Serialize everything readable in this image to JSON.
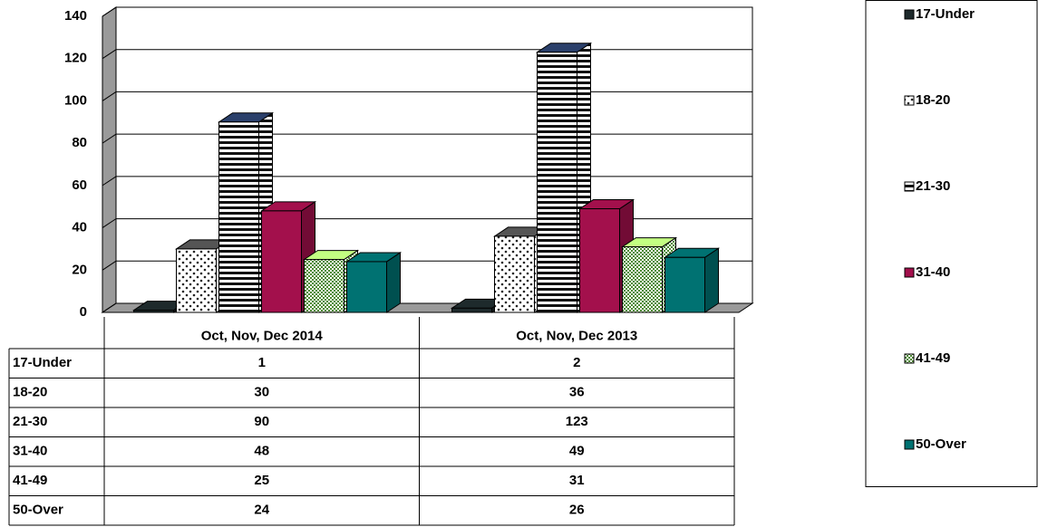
{
  "chart_data": {
    "type": "bar3d",
    "categories": [
      "Oct, Nov, Dec 2014",
      "Oct, Nov, Dec 2013"
    ],
    "series": [
      {
        "name": "17-Under",
        "color": "#1e2a2c",
        "pattern": "solid",
        "values": [
          1,
          2
        ]
      },
      {
        "name": "18-20",
        "color": "#222222",
        "pattern": "dots",
        "values": [
          30,
          36
        ]
      },
      {
        "name": "21-30",
        "color": "#111111",
        "pattern": "stripes",
        "values": [
          90,
          123
        ]
      },
      {
        "name": "31-40",
        "color": "#a3104c",
        "pattern": "solid",
        "values": [
          48,
          49
        ]
      },
      {
        "name": "41-49",
        "color": "#4e8a34",
        "pattern": "checker",
        "values": [
          25,
          31
        ]
      },
      {
        "name": "50-Over",
        "color": "#007272",
        "pattern": "solid",
        "values": [
          24,
          26
        ]
      }
    ],
    "ylim": [
      0,
      140
    ],
    "yticks": [
      0,
      20,
      40,
      60,
      80,
      100,
      120,
      140
    ],
    "grid": true,
    "legend": "right"
  }
}
